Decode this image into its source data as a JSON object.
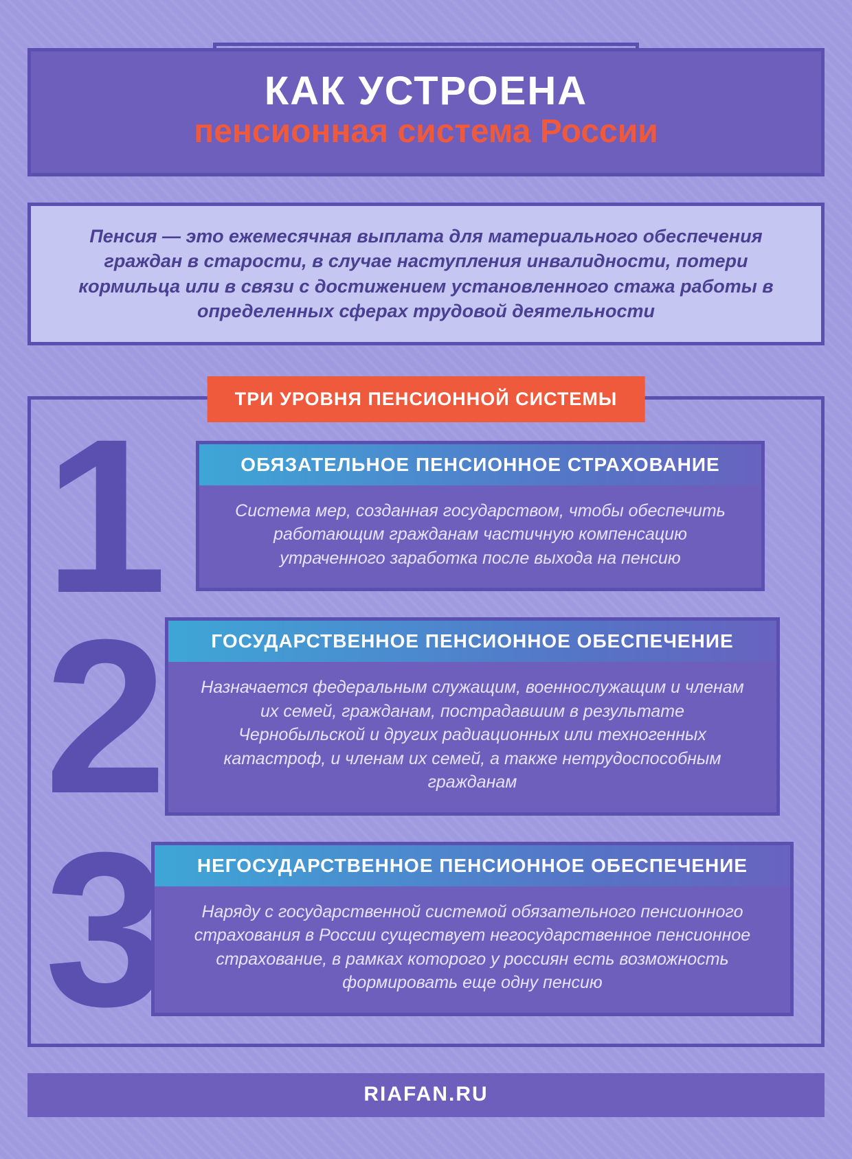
{
  "colors": {
    "bg": "#a09ae0",
    "panel": "#6e5fbd",
    "border": "#5b4fb0",
    "accent": "#f05a3c",
    "intro_bg": "#c6c6f2",
    "intro_text": "#4a3f90",
    "card_text": "#e6e3ff",
    "grad_start": "#3ea6d6",
    "grad_end": "#6863bf"
  },
  "header": {
    "title_line1": "КАК УСТРОЕНА",
    "title_line2": "пенсионная система России",
    "title_line1_fontsize": 58,
    "title_line2_fontsize": 48
  },
  "intro": {
    "text": "Пенсия — это ежемесячная выплата для материального обеспечения граждан в старости, в случае наступления инвалидности, потери кормильца или в связи с достижением установленного стажа работы в определенных сферах трудовой деятельности",
    "fontsize": 27
  },
  "levels": {
    "heading": "ТРИ УРОВНЯ ПЕНСИОННОЙ СИСТЕМЫ",
    "heading_fontsize": 27,
    "items": [
      {
        "num": "1",
        "title": "ОБЯЗАТЕЛЬНОЕ ПЕНСИОННОЕ СТРАХОВАНИЕ",
        "body": "Система мер, созданная государством, чтобы обеспечить работающим гражданам частичную компенсацию утраченного заработка после выхода на пенсию"
      },
      {
        "num": "2",
        "title": "ГОСУДАРСТВЕННОЕ ПЕНСИОННОЕ ОБЕСПЕЧЕНИЕ",
        "body": "Назначается федеральным служащим, военнослу­жащим и членам их семей, гражданам, пострадавшим в результате Чернобыльской и других радиационных или техногенных катастроф, и членам их семей, а также нетрудоспособным гражданам"
      },
      {
        "num": "3",
        "title": "НЕГОСУДАРСТВЕННОЕ ПЕНСИОННОЕ ОБЕСПЕЧЕНИЕ",
        "body": "Наряду с государственной системой обязательного пенсионного страхования в России существует негосу­дарственное пенсионное страхование, в рамках которого у россиян есть возможность формировать еще одну пенсию"
      }
    ],
    "title_fontsize": 28,
    "body_fontsize": 25,
    "number_fontsize": 320
  },
  "footer": {
    "text": "RIAFAN.RU",
    "fontsize": 30
  }
}
